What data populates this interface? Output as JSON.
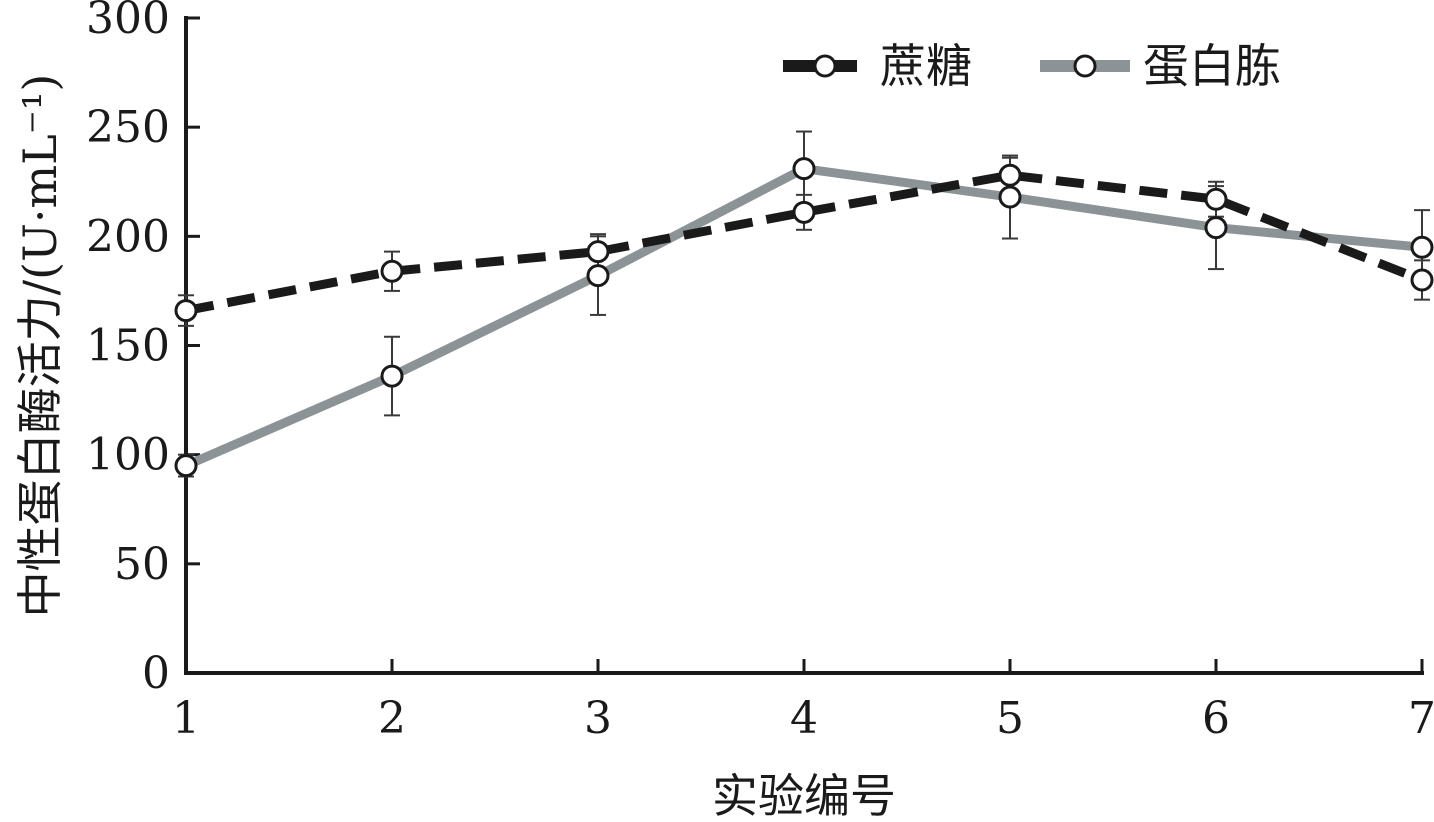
{
  "chart_data": {
    "type": "line",
    "title": "",
    "xlabel": "实验编号",
    "ylabel": "中性蛋白酶活力/(U·mL⁻¹)",
    "x": [
      1,
      2,
      3,
      4,
      5,
      6,
      7
    ],
    "xlim": [
      1,
      7
    ],
    "ylim": [
      0,
      300
    ],
    "yticks": [
      0,
      50,
      100,
      150,
      200,
      250,
      300
    ],
    "grid": false,
    "legend_position": "top-right",
    "series": [
      {
        "name": "蔗糖",
        "color": "#1a1a1a",
        "line_style": "dashed",
        "marker": "open-circle",
        "values": [
          166,
          184,
          193,
          211,
          228,
          217,
          180
        ],
        "errors": [
          7,
          9,
          8,
          8,
          8,
          8,
          9
        ]
      },
      {
        "name": "蛋白胨",
        "color": "#8c9396",
        "line_style": "solid",
        "marker": "open-circle",
        "values": [
          95,
          136,
          182,
          231,
          218,
          204,
          195
        ],
        "errors": [
          5,
          18,
          18,
          17,
          19,
          19,
          17
        ]
      }
    ]
  }
}
